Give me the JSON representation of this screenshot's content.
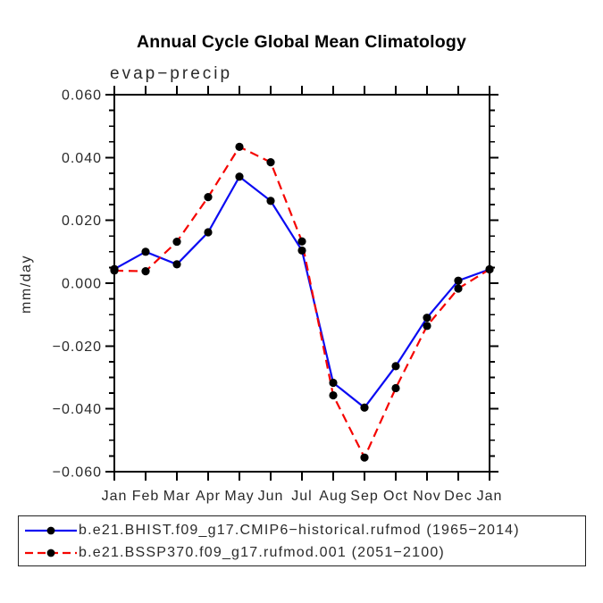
{
  "chart_data": {
    "type": "line",
    "title": "Annual Cycle Global Mean Climatology",
    "subtitle": "evap−precip",
    "ylabel": "mm/day",
    "x_categories": [
      "Jan",
      "Feb",
      "Mar",
      "Apr",
      "May",
      "Jun",
      "Jul",
      "Aug",
      "Sep",
      "Oct",
      "Nov",
      "Dec",
      "Jan"
    ],
    "ylim": [
      -0.06,
      0.06
    ],
    "ytick_labels": [
      "0.060",
      "0.040",
      "0.020",
      "0.000",
      "−0.020",
      "−0.040",
      "−0.060"
    ],
    "ytick_values": [
      0.06,
      0.04,
      0.02,
      0.0,
      -0.02,
      -0.04,
      -0.06
    ],
    "yminor_step": 0.005,
    "grid": false,
    "legend_position": "bottom-box",
    "marker_color": "#000000",
    "series": [
      {
        "name": "b.e21.BHIST.f09_g17.CMIP6−historical.rufmod (1965−2014)",
        "color": "#0b0bf2",
        "line_style": "solid",
        "values": [
          0.0045,
          0.01,
          0.006,
          0.0162,
          0.0339,
          0.0262,
          0.0104,
          -0.0317,
          -0.0396,
          -0.0264,
          -0.011,
          0.0008,
          0.0044
        ]
      },
      {
        "name": "b.e21.BSSP370.f09_g17.rufmod.001 (2051−2100)",
        "color": "#f50400",
        "line_style": "dashed",
        "values": [
          0.004,
          0.0038,
          0.0132,
          0.0274,
          0.0434,
          0.0385,
          0.0133,
          -0.0357,
          -0.0555,
          -0.0334,
          -0.0136,
          -0.0017,
          0.0044
        ]
      }
    ]
  }
}
